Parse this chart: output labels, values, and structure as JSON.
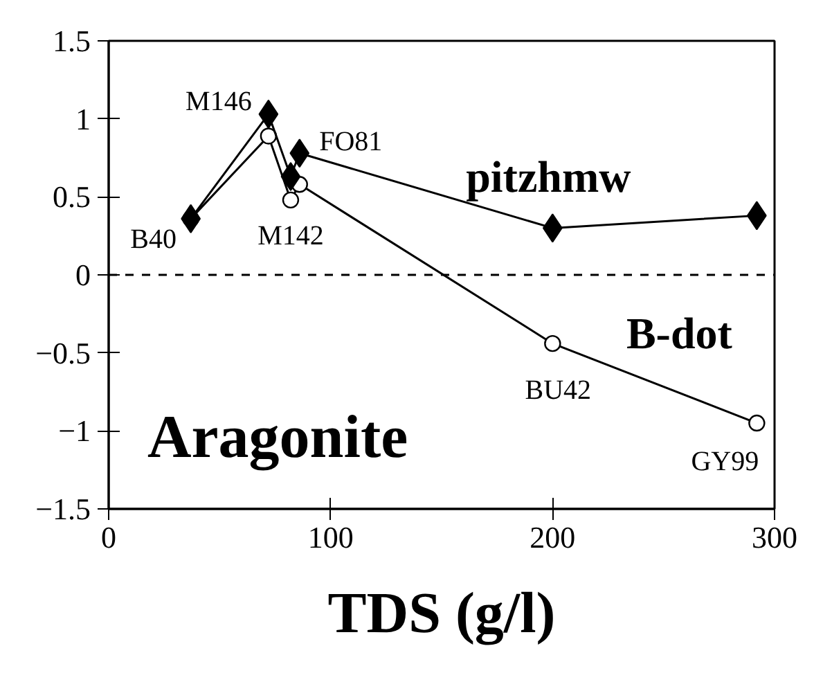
{
  "chart_data": {
    "type": "line",
    "xlabel": "TDS (g/l)",
    "x": [
      37,
      72,
      82,
      86,
      200,
      292
    ],
    "series": [
      {
        "name": "pitzhmw",
        "color": "#000000",
        "marker": "diamond",
        "values": [
          0.36,
          1.03,
          0.63,
          0.78,
          0.3,
          0.38
        ]
      },
      {
        "name": "B-dot",
        "color": "#000000",
        "marker": "circle",
        "values": [
          0.36,
          0.89,
          0.48,
          0.58,
          -0.44,
          -0.95
        ]
      }
    ],
    "xlim": [
      0,
      300
    ],
    "xticks": [
      0,
      100,
      200,
      300
    ],
    "ylim": [
      -1.5,
      1.5
    ],
    "yticks": [
      -1.5,
      -1,
      -0.5,
      0,
      0.5,
      1,
      1.5
    ],
    "ref_lines": [
      {
        "axis": "y",
        "value": 0,
        "line_style": "dashed"
      }
    ],
    "annotations": [
      {
        "text": "B40",
        "x": 37,
        "y": 0.36
      },
      {
        "text": "M146",
        "x": 72,
        "y": 1.03
      },
      {
        "text": "M142",
        "x": 82,
        "y": 0.63
      },
      {
        "text": "FO81",
        "x": 86,
        "y": 0.78
      },
      {
        "text": "BU42",
        "x": 200,
        "y": -0.44
      },
      {
        "text": "GY99",
        "x": 292,
        "y": -0.95
      },
      "Aragonite"
    ],
    "grid": false,
    "line_style": "solid"
  }
}
